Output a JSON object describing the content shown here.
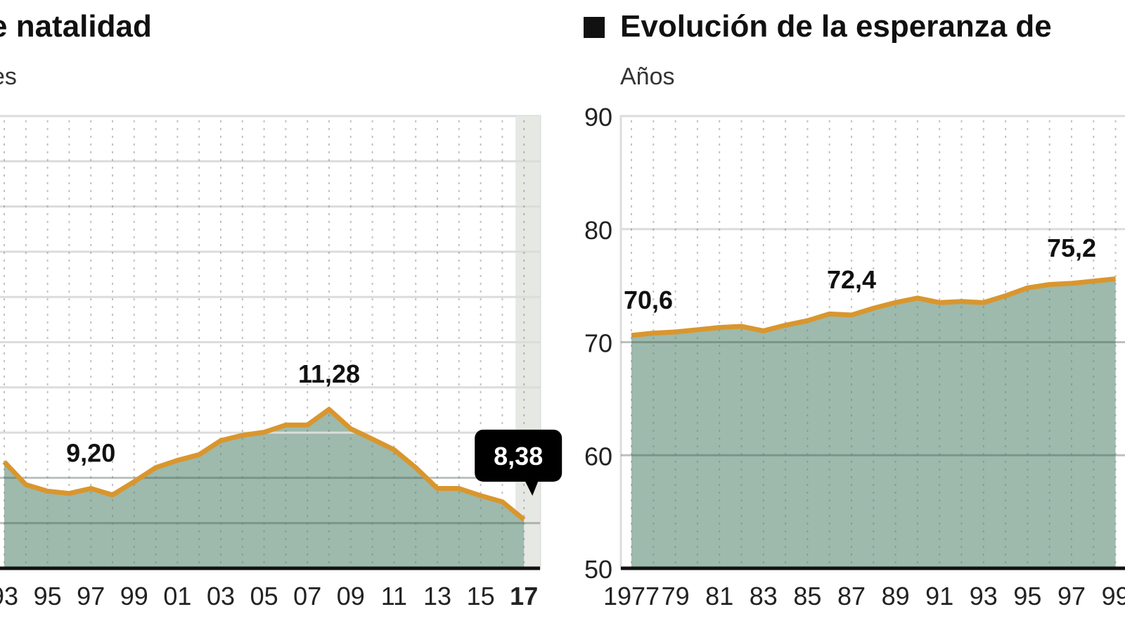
{
  "chart_data": [
    {
      "type": "area",
      "title": "e natalidad",
      "subtitle": "es",
      "xlabel": "",
      "ylabel": "",
      "ylim": [
        7.1,
        19
      ],
      "xlim": [
        1993,
        2017
      ],
      "grid": true,
      "highlight_year": 2017,
      "x_tick_labels": [
        "93",
        "95",
        "97",
        "99",
        "01",
        "03",
        "05",
        "07",
        "09",
        "11",
        "13",
        "15",
        "17"
      ],
      "x_ticks": [
        1993,
        1995,
        1997,
        1999,
        2001,
        2003,
        2005,
        2007,
        2009,
        2011,
        2013,
        2015,
        2017
      ],
      "x": [
        1993,
        1994,
        1995,
        1996,
        1997,
        1998,
        1999,
        2000,
        2001,
        2002,
        2003,
        2004,
        2005,
        2006,
        2007,
        2008,
        2009,
        2010,
        2011,
        2012,
        2013,
        2014,
        2015,
        2016,
        2017
      ],
      "values": [
        9.9,
        9.3,
        9.13,
        9.07,
        9.2,
        9.03,
        9.38,
        9.75,
        9.94,
        10.09,
        10.46,
        10.6,
        10.68,
        10.87,
        10.87,
        11.28,
        10.77,
        10.5,
        10.22,
        9.75,
        9.2,
        9.2,
        9.01,
        8.85,
        8.38
      ],
      "annotations": [
        {
          "year": 1997,
          "value": 9.2,
          "text": "9,20",
          "style": "plain"
        },
        {
          "year": 2008,
          "value": 11.28,
          "text": "11,28",
          "style": "plain"
        },
        {
          "year": 2017,
          "value": 8.38,
          "text": "8,38",
          "style": "callout"
        }
      ]
    },
    {
      "type": "area",
      "title": "Evolución de la esperanza de",
      "subtitle": "Años",
      "xlabel": "",
      "ylabel": "",
      "ylim": [
        50,
        90
      ],
      "y_ticks": [
        50,
        60,
        70,
        80,
        90
      ],
      "xlim": [
        1977,
        1999
      ],
      "grid": true,
      "x_tick_labels": [
        "1977",
        "79",
        "81",
        "83",
        "85",
        "87",
        "89",
        "91",
        "93",
        "95",
        "97",
        "99"
      ],
      "x_ticks": [
        1977,
        1979,
        1981,
        1983,
        1985,
        1987,
        1989,
        1991,
        1993,
        1995,
        1997,
        1999
      ],
      "x": [
        1977,
        1978,
        1979,
        1980,
        1981,
        1982,
        1983,
        1984,
        1985,
        1986,
        1987,
        1988,
        1989,
        1990,
        1991,
        1992,
        1993,
        1994,
        1995,
        1996,
        1997,
        1998,
        1999
      ],
      "values": [
        70.6,
        70.8,
        70.9,
        71.1,
        71.3,
        71.4,
        71.0,
        71.5,
        71.9,
        72.5,
        72.4,
        73.0,
        73.5,
        73.9,
        73.5,
        73.6,
        73.5,
        74.1,
        74.8,
        75.1,
        75.2,
        75.4,
        75.6
      ],
      "annotations": [
        {
          "year": 1977,
          "value": 70.6,
          "text": "70,6",
          "style": "plain"
        },
        {
          "year": 1987,
          "value": 72.4,
          "text": "72,4",
          "style": "plain"
        },
        {
          "year": 1997,
          "value": 75.2,
          "text": "75,2",
          "style": "plain"
        }
      ]
    }
  ],
  "colors": {
    "line": "#d9962e",
    "fill": "#9dbaad",
    "axis": "#111111",
    "grid": "#dcdcdc",
    "highlight": "#e6e8e4",
    "callout": "#000000"
  }
}
